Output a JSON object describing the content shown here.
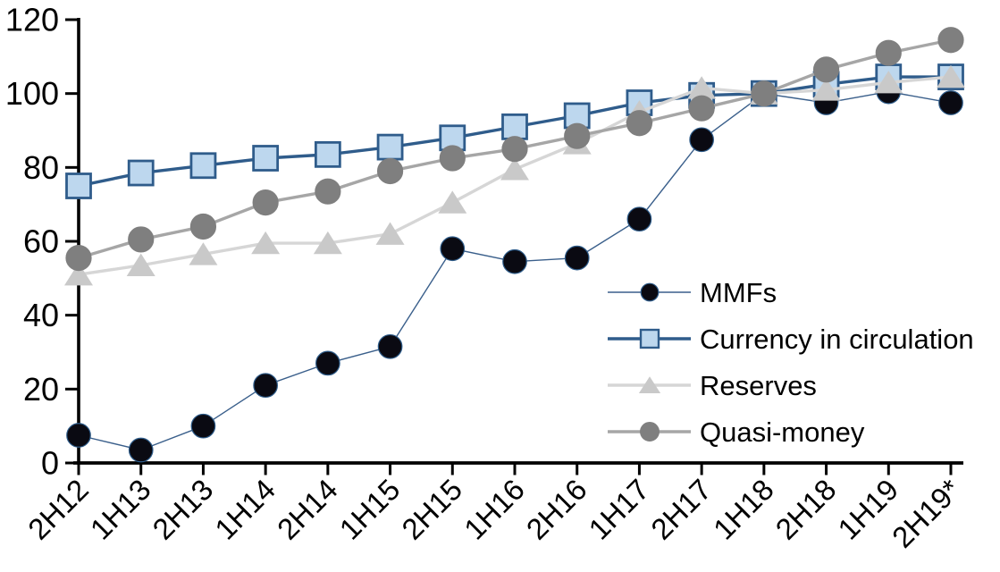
{
  "chart_data": {
    "type": "line",
    "title": "",
    "background": "#ffffff",
    "axis_color": "#000000",
    "grid": false,
    "legend_position": "inside-right",
    "categories": [
      "2H12",
      "1H13",
      "2H13",
      "1H14",
      "2H14",
      "1H15",
      "2H15",
      "1H16",
      "2H16",
      "1H17",
      "2H17",
      "1H18",
      "2H18",
      "1H19",
      "2H19*"
    ],
    "y_axis": {
      "min": 0,
      "max": 120,
      "step": 20,
      "tick_labels": [
        "0",
        "20",
        "40",
        "60",
        "80",
        "100",
        "120"
      ]
    },
    "series": [
      {
        "name": "MMFs",
        "marker": "circle",
        "marker_color": "#0a0a12",
        "marker_border": "#2e5c8a",
        "line_color": "#3a5f8b",
        "line_width": 1.4,
        "marker_size": 26.5,
        "values": [
          7.5,
          3.5,
          10,
          21,
          27,
          31.5,
          58,
          54.5,
          55.5,
          66,
          87.5,
          100,
          97.5,
          100.5,
          97.5
        ]
      },
      {
        "name": "Currency in circulation",
        "marker": "square",
        "marker_color": "#bdd7ee",
        "marker_border": "#2f5c8b",
        "line_color": "#2f5c8b",
        "line_width": 3.4,
        "marker_size": 27,
        "values": [
          75,
          78.5,
          80.5,
          82.5,
          83.5,
          85.5,
          88,
          91,
          94,
          97.5,
          99.5,
          100,
          102.5,
          104.5,
          104.5
        ]
      },
      {
        "name": "Reserves",
        "marker": "triangle",
        "marker_color": "#c9c9c9",
        "marker_border": "#c9c9c9",
        "line_color": "#d6d6d6",
        "line_width": 3.4,
        "marker_size": 30,
        "values": [
          51,
          53.5,
          56.5,
          59.5,
          59.5,
          62,
          70.5,
          79.5,
          86.5,
          95,
          101.5,
          100,
          101,
          103,
          104.5
        ]
      },
      {
        "name": "Quasi-money",
        "marker": "circle",
        "marker_color": "#7f7f7f",
        "marker_border": "#7f7f7f",
        "line_color": "#a6a6a6",
        "line_width": 3.4,
        "marker_size": 28,
        "values": [
          55.5,
          60.5,
          64,
          70.5,
          73.5,
          79,
          82.5,
          85,
          88.5,
          92,
          96,
          100,
          106.5,
          111,
          114.5
        ]
      }
    ]
  }
}
